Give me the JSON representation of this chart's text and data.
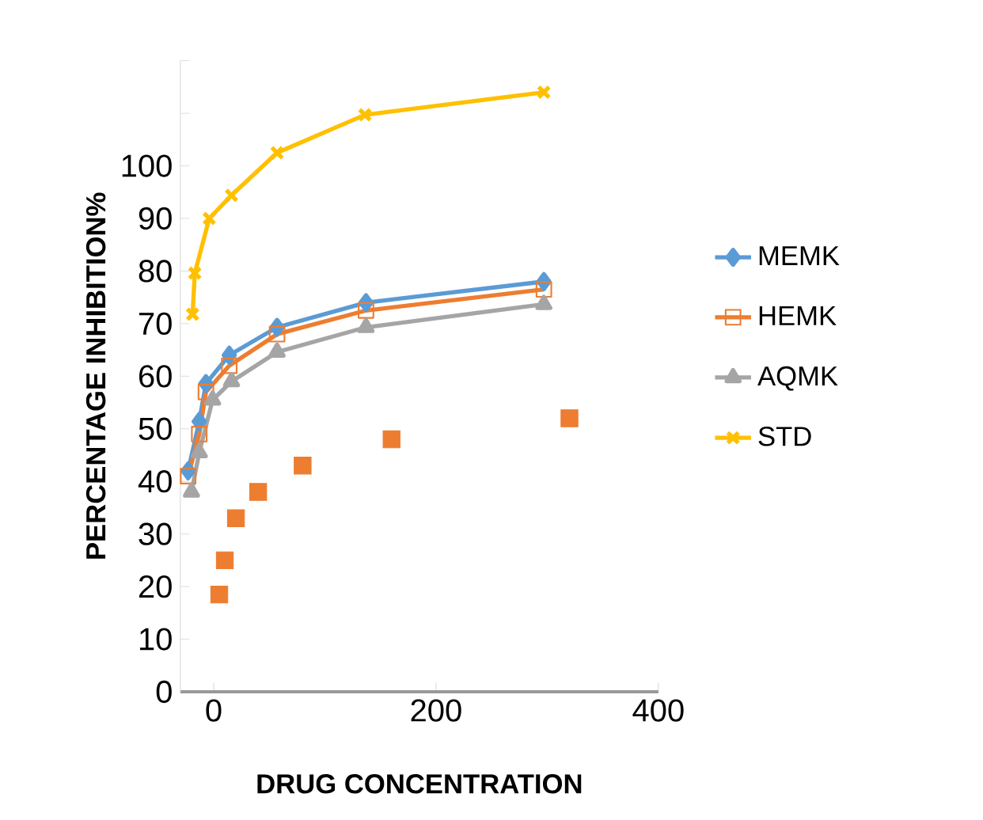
{
  "chart_data": {
    "type": "line",
    "xlabel": "DRUG CONCENTRATION",
    "ylabel": "PERCENTAGE  INHIBITION%",
    "xlim": [
      -30,
      400
    ],
    "xticks": [
      0,
      200,
      400
    ],
    "ylim": [
      0,
      120
    ],
    "yticks": [
      0,
      10,
      20,
      30,
      40,
      50,
      60,
      70,
      80,
      90,
      100,
      {
        "value": 110,
        "label": null
      },
      {
        "value": 120,
        "label": null
      }
    ],
    "legend": "right",
    "series": [
      {
        "name": "MEMK",
        "color": "#5b9bd5",
        "marker": "diamond",
        "x": [
          -23,
          -13,
          -7,
          14,
          57,
          137,
          297
        ],
        "values": [
          42,
          51.4,
          58.6,
          64,
          69.3,
          74,
          78
        ]
      },
      {
        "name": "HEMK",
        "color": "#ed7d31",
        "marker": "square",
        "x": [
          -23,
          -13,
          -7,
          14,
          57,
          137,
          297
        ],
        "values": [
          41,
          49,
          57,
          62,
          68,
          72.5,
          76.5
        ]
      },
      {
        "name": "AQMK",
        "color": "#a5a5a5",
        "marker": "triangle",
        "x": [
          -20,
          -13,
          -1,
          16,
          57,
          137,
          297
        ],
        "values": [
          38,
          45.5,
          55.5,
          59,
          64.6,
          69.3,
          73.7
        ]
      },
      {
        "name": "STD",
        "color": "#ffc000",
        "marker": "cross",
        "x": [
          -19,
          -17,
          -4,
          16,
          57,
          136,
          297
        ],
        "values": [
          71.8,
          79.6,
          90,
          94.4,
          102.5,
          109.7,
          114
        ]
      },
      {
        "type": "scatter",
        "color": "#ed7d31",
        "marker": "square",
        "x": [
          5,
          10,
          20,
          40,
          80,
          160,
          320
        ],
        "values": [
          18.5,
          25,
          33,
          38,
          43,
          48,
          52
        ]
      }
    ]
  }
}
